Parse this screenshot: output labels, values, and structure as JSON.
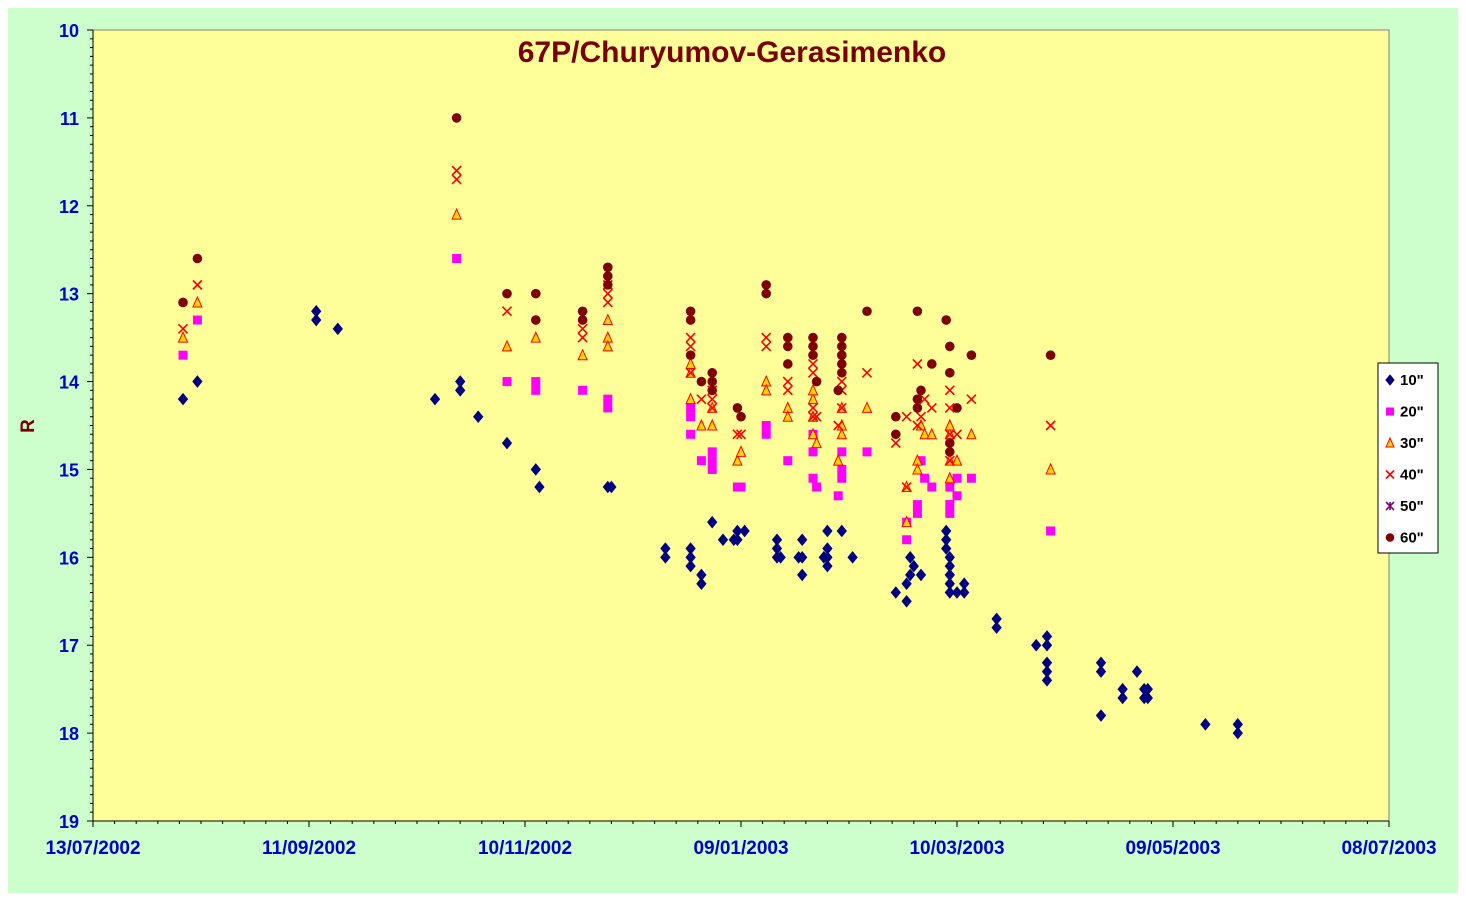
{
  "colors": {
    "outer_background": "#ccffcc",
    "plot_background": "#ffff99",
    "title": "#7a0000",
    "tick_labels": "#0000cc",
    "axis_label": "#7a0000"
  },
  "chart_data": {
    "type": "scatter",
    "title": "67P/Churyumov-Gerasimenko",
    "xlabel": "",
    "ylabel": "R",
    "y_inverted": true,
    "ylim": [
      10,
      19
    ],
    "xlim": [
      "2002-07-13",
      "2003-07-08"
    ],
    "x_tick_labels": [
      "13/07/2002",
      "11/09/2002",
      "10/11/2002",
      "09/01/2003",
      "10/03/2003",
      "09/05/2003",
      "08/07/2003"
    ],
    "y_tick_labels": [
      "10",
      "11",
      "12",
      "13",
      "14",
      "15",
      "16",
      "17",
      "18",
      "19"
    ],
    "legend_position": "right",
    "grid": false,
    "series": [
      {
        "name": "10\"",
        "color": "#000080",
        "marker": "diamond",
        "points": [
          [
            "2002-08-07",
            14.2
          ],
          [
            "2002-08-11",
            14.0
          ],
          [
            "2002-09-13",
            13.2
          ],
          [
            "2002-09-13",
            13.3
          ],
          [
            "2002-09-19",
            13.4
          ],
          [
            "2002-10-16",
            14.2
          ],
          [
            "2002-10-23",
            14.0
          ],
          [
            "2002-10-23",
            14.1
          ],
          [
            "2002-10-28",
            14.4
          ],
          [
            "2002-11-05",
            14.7
          ],
          [
            "2002-11-13",
            15.0
          ],
          [
            "2002-11-14",
            15.2
          ],
          [
            "2002-12-03",
            15.2
          ],
          [
            "2002-12-04",
            15.2
          ],
          [
            "2002-12-19",
            15.9
          ],
          [
            "2002-12-19",
            16.0
          ],
          [
            "2002-12-26",
            15.9
          ],
          [
            "2002-12-26",
            16.0
          ],
          [
            "2002-12-26",
            16.1
          ],
          [
            "2002-12-29",
            16.2
          ],
          [
            "2002-12-29",
            16.3
          ],
          [
            "2003-01-01",
            15.6
          ],
          [
            "2003-01-04",
            15.8
          ],
          [
            "2003-01-07",
            15.8
          ],
          [
            "2003-01-08",
            15.7
          ],
          [
            "2003-01-08",
            15.8
          ],
          [
            "2003-01-10",
            15.7
          ],
          [
            "2003-01-19",
            15.8
          ],
          [
            "2003-01-19",
            15.9
          ],
          [
            "2003-01-19",
            16.0
          ],
          [
            "2003-01-20",
            16.0
          ],
          [
            "2003-01-26",
            15.8
          ],
          [
            "2003-01-26",
            16.0
          ],
          [
            "2003-01-26",
            16.2
          ],
          [
            "2003-01-25",
            16.0
          ],
          [
            "2003-02-02",
            15.7
          ],
          [
            "2003-02-02",
            15.9
          ],
          [
            "2003-02-02",
            16.0
          ],
          [
            "2003-02-02",
            16.1
          ],
          [
            "2003-02-01",
            16.0
          ],
          [
            "2003-02-06",
            15.7
          ],
          [
            "2003-02-09",
            16.0
          ],
          [
            "2003-02-21",
            16.4
          ],
          [
            "2003-02-24",
            16.5
          ],
          [
            "2003-02-24",
            16.3
          ],
          [
            "2003-02-25",
            16.0
          ],
          [
            "2003-02-25",
            16.2
          ],
          [
            "2003-02-26",
            16.1
          ],
          [
            "2003-02-28",
            16.2
          ],
          [
            "2003-03-07",
            15.7
          ],
          [
            "2003-03-07",
            15.8
          ],
          [
            "2003-03-07",
            15.9
          ],
          [
            "2003-03-08",
            16.0
          ],
          [
            "2003-03-08",
            16.1
          ],
          [
            "2003-03-08",
            16.2
          ],
          [
            "2003-03-08",
            16.3
          ],
          [
            "2003-03-08",
            16.4
          ],
          [
            "2003-03-10",
            16.4
          ],
          [
            "2003-03-12",
            16.3
          ],
          [
            "2003-03-12",
            16.4
          ],
          [
            "2003-03-21",
            16.7
          ],
          [
            "2003-03-21",
            16.8
          ],
          [
            "2003-04-01",
            17.0
          ],
          [
            "2003-04-04",
            16.9
          ],
          [
            "2003-04-04",
            17.0
          ],
          [
            "2003-04-04",
            17.2
          ],
          [
            "2003-04-04",
            17.3
          ],
          [
            "2003-04-04",
            17.4
          ],
          [
            "2003-04-19",
            17.2
          ],
          [
            "2003-04-19",
            17.3
          ],
          [
            "2003-04-19",
            17.8
          ],
          [
            "2003-04-25",
            17.5
          ],
          [
            "2003-04-25",
            17.6
          ],
          [
            "2003-04-29",
            17.3
          ],
          [
            "2003-05-01",
            17.5
          ],
          [
            "2003-05-01",
            17.6
          ],
          [
            "2003-05-02",
            17.5
          ],
          [
            "2003-05-02",
            17.6
          ],
          [
            "2003-05-18",
            17.9
          ],
          [
            "2003-05-27",
            17.9
          ],
          [
            "2003-05-27",
            18.0
          ]
        ]
      },
      {
        "name": "20\"",
        "color": "#ff00ff",
        "marker": "square",
        "points": [
          [
            "2002-08-07",
            13.7
          ],
          [
            "2002-08-11",
            13.3
          ],
          [
            "2002-10-22",
            12.6
          ],
          [
            "2002-11-05",
            14.0
          ],
          [
            "2002-11-13",
            14.0
          ],
          [
            "2002-11-13",
            14.1
          ],
          [
            "2002-11-26",
            14.1
          ],
          [
            "2002-12-03",
            14.2
          ],
          [
            "2002-12-03",
            14.3
          ],
          [
            "2002-12-26",
            14.3
          ],
          [
            "2002-12-26",
            14.4
          ],
          [
            "2002-12-26",
            14.6
          ],
          [
            "2002-12-29",
            14.9
          ],
          [
            "2003-01-01",
            14.8
          ],
          [
            "2003-01-01",
            14.9
          ],
          [
            "2003-01-01",
            15.0
          ],
          [
            "2003-01-08",
            15.2
          ],
          [
            "2003-01-09",
            15.2
          ],
          [
            "2003-01-16",
            14.5
          ],
          [
            "2003-01-16",
            14.6
          ],
          [
            "2003-01-22",
            14.9
          ],
          [
            "2003-01-29",
            14.6
          ],
          [
            "2003-01-29",
            14.8
          ],
          [
            "2003-01-29",
            15.1
          ],
          [
            "2003-01-30",
            15.2
          ],
          [
            "2003-02-05",
            15.3
          ],
          [
            "2003-02-06",
            14.8
          ],
          [
            "2003-02-06",
            15.0
          ],
          [
            "2003-02-06",
            15.1
          ],
          [
            "2003-02-13",
            14.8
          ],
          [
            "2003-02-24",
            15.6
          ],
          [
            "2003-02-24",
            15.8
          ],
          [
            "2003-02-27",
            15.4
          ],
          [
            "2003-02-27",
            15.5
          ],
          [
            "2003-02-28",
            14.9
          ],
          [
            "2003-03-01",
            15.1
          ],
          [
            "2003-03-03",
            15.2
          ],
          [
            "2003-03-08",
            15.2
          ],
          [
            "2003-03-08",
            15.4
          ],
          [
            "2003-03-08",
            15.5
          ],
          [
            "2003-03-10",
            15.3
          ],
          [
            "2003-03-10",
            15.1
          ],
          [
            "2003-03-14",
            15.1
          ],
          [
            "2003-04-05",
            15.7
          ]
        ]
      },
      {
        "name": "30\"",
        "color": "#ffd700",
        "marker": "triangle",
        "points": [
          [
            "2002-08-07",
            13.5
          ],
          [
            "2002-08-11",
            13.1
          ],
          [
            "2002-10-22",
            12.1
          ],
          [
            "2002-11-05",
            13.6
          ],
          [
            "2002-11-13",
            13.5
          ],
          [
            "2002-11-26",
            13.7
          ],
          [
            "2002-12-03",
            13.3
          ],
          [
            "2002-12-03",
            13.5
          ],
          [
            "2002-12-03",
            13.6
          ],
          [
            "2002-12-26",
            14.2
          ],
          [
            "2002-12-26",
            13.9
          ],
          [
            "2002-12-26",
            13.8
          ],
          [
            "2002-12-29",
            14.5
          ],
          [
            "2003-01-01",
            14.3
          ],
          [
            "2003-01-01",
            14.5
          ],
          [
            "2003-01-08",
            14.9
          ],
          [
            "2003-01-09",
            14.8
          ],
          [
            "2003-01-16",
            14.0
          ],
          [
            "2003-01-16",
            14.1
          ],
          [
            "2003-01-22",
            14.3
          ],
          [
            "2003-01-22",
            14.4
          ],
          [
            "2003-01-29",
            14.2
          ],
          [
            "2003-01-29",
            14.1
          ],
          [
            "2003-01-29",
            14.4
          ],
          [
            "2003-01-29",
            14.6
          ],
          [
            "2003-01-30",
            14.7
          ],
          [
            "2003-02-05",
            14.9
          ],
          [
            "2003-02-06",
            14.3
          ],
          [
            "2003-02-06",
            14.5
          ],
          [
            "2003-02-06",
            14.6
          ],
          [
            "2003-02-13",
            14.3
          ],
          [
            "2003-02-24",
            15.2
          ],
          [
            "2003-02-24",
            15.6
          ],
          [
            "2003-02-27",
            14.9
          ],
          [
            "2003-02-27",
            15.0
          ],
          [
            "2003-02-28",
            14.5
          ],
          [
            "2003-03-01",
            14.6
          ],
          [
            "2003-03-03",
            14.6
          ],
          [
            "2003-03-08",
            14.6
          ],
          [
            "2003-03-08",
            14.5
          ],
          [
            "2003-03-08",
            14.9
          ],
          [
            "2003-03-08",
            15.1
          ],
          [
            "2003-03-10",
            14.9
          ],
          [
            "2003-03-14",
            14.6
          ],
          [
            "2003-04-05",
            15.0
          ]
        ]
      },
      {
        "name": "40\"",
        "color": "#ff0000",
        "marker": "x",
        "points": [
          [
            "2002-08-07",
            13.4
          ],
          [
            "2002-08-11",
            12.9
          ],
          [
            "2002-10-22",
            11.6
          ],
          [
            "2002-10-22",
            11.7
          ],
          [
            "2002-11-05",
            13.2
          ],
          [
            "2002-11-26",
            13.4
          ],
          [
            "2002-11-26",
            13.5
          ],
          [
            "2002-12-03",
            13.0
          ],
          [
            "2002-12-03",
            12.9
          ],
          [
            "2002-12-03",
            13.1
          ],
          [
            "2002-12-26",
            13.5
          ],
          [
            "2002-12-26",
            13.6
          ],
          [
            "2002-12-26",
            13.9
          ],
          [
            "2002-12-29",
            14.2
          ],
          [
            "2003-01-01",
            14.1
          ],
          [
            "2003-01-01",
            14.2
          ],
          [
            "2003-01-01",
            14.3
          ],
          [
            "2003-01-08",
            14.6
          ],
          [
            "2003-01-09",
            14.6
          ],
          [
            "2003-01-16",
            13.5
          ],
          [
            "2003-01-16",
            13.6
          ],
          [
            "2003-01-22",
            14.0
          ],
          [
            "2003-01-22",
            14.1
          ],
          [
            "2003-01-29",
            13.8
          ],
          [
            "2003-01-29",
            13.9
          ],
          [
            "2003-01-29",
            14.3
          ],
          [
            "2003-01-29",
            14.4
          ],
          [
            "2003-01-30",
            14.4
          ],
          [
            "2003-02-05",
            14.5
          ],
          [
            "2003-02-06",
            14.0
          ],
          [
            "2003-02-06",
            14.1
          ],
          [
            "2003-02-06",
            14.3
          ],
          [
            "2003-02-13",
            13.9
          ],
          [
            "2003-02-21",
            14.7
          ],
          [
            "2003-02-24",
            15.2
          ],
          [
            "2003-02-24",
            14.4
          ],
          [
            "2003-02-27",
            13.8
          ],
          [
            "2003-02-27",
            14.5
          ],
          [
            "2003-02-28",
            14.4
          ],
          [
            "2003-03-01",
            14.2
          ],
          [
            "2003-03-03",
            14.3
          ],
          [
            "2003-03-08",
            14.1
          ],
          [
            "2003-03-08",
            14.3
          ],
          [
            "2003-03-08",
            14.6
          ],
          [
            "2003-03-08",
            14.9
          ],
          [
            "2003-03-10",
            14.6
          ],
          [
            "2003-03-14",
            14.2
          ],
          [
            "2003-04-05",
            14.5
          ]
        ]
      },
      {
        "name": "50\"",
        "color": "#800080",
        "marker": "asterisk",
        "points": []
      },
      {
        "name": "60\"",
        "color": "#800000",
        "marker": "circle",
        "points": [
          [
            "2002-08-07",
            13.1
          ],
          [
            "2002-08-11",
            12.6
          ],
          [
            "2002-10-22",
            11.0
          ],
          [
            "2002-11-05",
            13.0
          ],
          [
            "2002-11-13",
            13.0
          ],
          [
            "2002-11-13",
            13.3
          ],
          [
            "2002-11-26",
            13.2
          ],
          [
            "2002-11-26",
            13.3
          ],
          [
            "2002-12-03",
            12.7
          ],
          [
            "2002-12-03",
            12.8
          ],
          [
            "2002-12-03",
            12.9
          ],
          [
            "2002-12-26",
            13.2
          ],
          [
            "2002-12-26",
            13.3
          ],
          [
            "2002-12-26",
            13.7
          ],
          [
            "2002-12-29",
            14.0
          ],
          [
            "2003-01-01",
            13.9
          ],
          [
            "2003-01-01",
            14.0
          ],
          [
            "2003-01-01",
            14.1
          ],
          [
            "2003-01-08",
            14.3
          ],
          [
            "2003-01-09",
            14.4
          ],
          [
            "2003-01-16",
            12.9
          ],
          [
            "2003-01-16",
            13.0
          ],
          [
            "2003-01-22",
            13.5
          ],
          [
            "2003-01-22",
            13.6
          ],
          [
            "2003-01-22",
            13.8
          ],
          [
            "2003-01-29",
            13.5
          ],
          [
            "2003-01-29",
            13.6
          ],
          [
            "2003-01-29",
            13.7
          ],
          [
            "2003-01-30",
            14.0
          ],
          [
            "2003-02-05",
            14.1
          ],
          [
            "2003-02-06",
            13.5
          ],
          [
            "2003-02-06",
            13.6
          ],
          [
            "2003-02-06",
            13.7
          ],
          [
            "2003-02-06",
            13.8
          ],
          [
            "2003-02-06",
            13.9
          ],
          [
            "2003-02-13",
            13.2
          ],
          [
            "2003-02-21",
            14.4
          ],
          [
            "2003-02-21",
            14.6
          ],
          [
            "2003-02-27",
            13.2
          ],
          [
            "2003-02-27",
            14.2
          ],
          [
            "2003-02-27",
            14.3
          ],
          [
            "2003-02-28",
            14.1
          ],
          [
            "2003-03-03",
            13.8
          ],
          [
            "2003-03-07",
            13.3
          ],
          [
            "2003-03-08",
            13.6
          ],
          [
            "2003-03-08",
            13.9
          ],
          [
            "2003-03-08",
            14.7
          ],
          [
            "2003-03-08",
            14.8
          ],
          [
            "2003-03-10",
            14.3
          ],
          [
            "2003-03-14",
            13.7
          ],
          [
            "2003-04-05",
            13.7
          ]
        ]
      }
    ]
  }
}
